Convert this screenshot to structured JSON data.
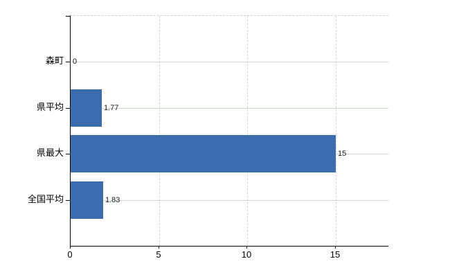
{
  "chart_data": {
    "type": "bar",
    "orientation": "horizontal",
    "title": "",
    "xlabel": "",
    "ylabel": "",
    "categories": [
      "森町",
      "県平均",
      "県最大",
      "全国平均"
    ],
    "values": [
      0,
      1.77,
      15,
      1.83
    ],
    "value_labels": [
      "0",
      "1.77",
      "15",
      "1.83"
    ],
    "xlim": [
      0,
      18
    ],
    "x_ticks": [
      0,
      5,
      10,
      15
    ],
    "x_tick_labels": [
      "0",
      "5",
      "10",
      "15"
    ],
    "grid": "on",
    "legend": "none",
    "bar_color": "#3d6cae",
    "colors": {
      "background": "#ffffff",
      "axis": "#000000",
      "h_gridline": "#cdd8cd",
      "v_gridline": "#d6d0da",
      "top_border": "#cfcfcf",
      "category_text": "#000000",
      "value_text": "#1a1a1a"
    }
  }
}
